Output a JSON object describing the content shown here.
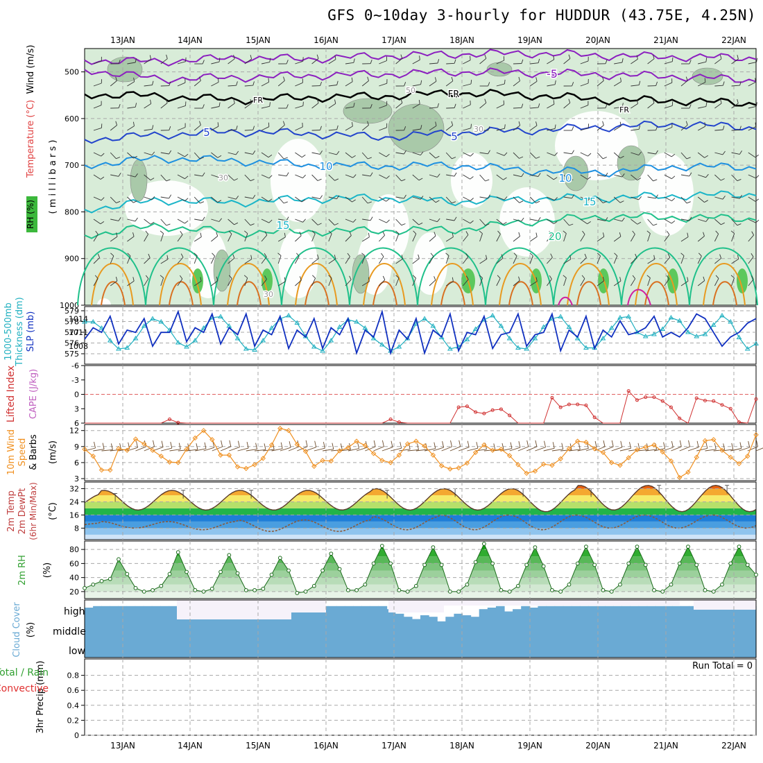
{
  "title": "GFS 0~10day 3-hourly for HUDDUR (43.75E, 4.25N)",
  "colors": {
    "grid": "#a8a8a8",
    "rh_fill": "#d8ecd8",
    "rh_mid": "#a9c9a9",
    "rh_dark": "#7f9f7f",
    "temp_purple": "#8b1fbf",
    "temp_blue": "#2244cc",
    "temp_lightblue": "#1e90e0",
    "temp_teal": "#1ab5c8",
    "temp_green": "#1fc08a",
    "temp_orange": "#e89a20",
    "slp": "#1030c0",
    "thickness": "#20b0c0",
    "lifted": "#d03030",
    "cape": "#c060c0",
    "wind_speed": "#f09020",
    "barb": "#6b4a2a",
    "rh2m": "#30a030",
    "cloud": "#6aaad4",
    "dewpt": "#8a5a3a"
  },
  "chart_data": [
    {
      "id": "upper_air",
      "type": "contour",
      "ylabel_parts": [
        "RH (%)",
        "Temperature (°C)",
        "Wind (m/s)"
      ],
      "ylabel2": "( m i l l i b a r s )",
      "y_ticks": [
        500,
        600,
        700,
        800,
        900,
        1000
      ],
      "ylim": [
        450,
        1000
      ],
      "isotherms": [
        {
          "label": "-5",
          "color": "purple",
          "levels": [
            475,
            478,
            470,
            472,
            466,
            462,
            460,
            465,
            468,
            470
          ]
        },
        {
          "label": "-5b",
          "color": "purple",
          "levels": [
            495,
            515,
            512,
            508,
            505,
            500,
            502,
            506,
            510,
            518
          ]
        },
        {
          "label": "FR",
          "color": "black",
          "levels": [
            548,
            552,
            560,
            555,
            552,
            545,
            550,
            560,
            562,
            568
          ]
        },
        {
          "label": "5",
          "color": "blue",
          "levels": [
            645,
            635,
            628,
            632,
            640,
            630,
            625,
            618,
            612,
            620
          ]
        },
        {
          "label": "10",
          "color": "lightblue",
          "levels": [
            700,
            685,
            690,
            700,
            702,
            700,
            712,
            715,
            702,
            705
          ]
        },
        {
          "label": "15",
          "color": "teal",
          "levels": [
            795,
            775,
            780,
            772,
            770,
            778,
            772,
            770,
            765,
            762
          ]
        },
        {
          "label": "20",
          "color": "green",
          "levels": [
            850,
            830,
            845,
            842,
            840,
            838,
            820,
            810,
            812,
            815
          ]
        }
      ],
      "contour_labels": [
        "-5",
        "FR",
        "FR",
        "FR",
        "5",
        "5",
        "10",
        "10",
        "15",
        "15",
        "20",
        "30",
        "30",
        "30",
        "50"
      ]
    },
    {
      "id": "slp_thickness",
      "type": "line",
      "ylabel_left": "1000-500mb Thickness (dm)",
      "ylabel_right": "SLP (mb)",
      "left_ticks": [
        575,
        576,
        577,
        578,
        579
      ],
      "right_ticks": [
        1008,
        1011,
        1014
      ],
      "series": [
        {
          "name": "SLP (mb)",
          "ylim": [
            1005,
            1016
          ],
          "values": [
            1009.5,
            1012,
            1011,
            1014.5,
            1008.5,
            1011.5,
            1011,
            1014,
            1008,
            1011,
            1011,
            1015.5,
            1009,
            1012,
            1011,
            1015,
            1008.5,
            1012,
            1010.5,
            1015,
            1008,
            1011.5,
            1010.5,
            1014.5,
            1007.5,
            1011.5,
            1010,
            1014,
            1007.5,
            1012,
            1010.5,
            1014,
            1006.5,
            1011.5,
            1010,
            1015.5,
            1006.5,
            1011.5,
            1009.5,
            1014,
            1006.5,
            1011.5,
            1010,
            1015,
            1007,
            1011,
            1010.5,
            1014.5,
            1007.5,
            1010.5,
            1011,
            1015,
            1008,
            1010.5,
            1011,
            1015,
            1007,
            1011.5,
            1010,
            1014.5,
            1007.5,
            1011.5,
            1010,
            1013.5,
            1010.5,
            1011,
            1012,
            1014.5,
            1010,
            1011,
            1010,
            1012,
            1015,
            1014,
            1011,
            1008,
            1010,
            1011,
            1013,
            1014
          ]
        },
        {
          "name": "Thickness (dm)",
          "ylim": [
            574.6,
            579.2
          ],
          "values": [
            578.0,
            578.0,
            577.4,
            576.2,
            575.4,
            575.5,
            576.4,
            577.6,
            578.3,
            578.0,
            577.2,
            576.0,
            575.6,
            576.2,
            577.4,
            578.4,
            578.5,
            577.6,
            576.4,
            575.4,
            575.3,
            576.2,
            577.4,
            578.3,
            578.6,
            577.9,
            576.6,
            575.6,
            575.2,
            576.2,
            577.5,
            578.2,
            578.0,
            577.4,
            576.4,
            575.8,
            575.2,
            575.6,
            576.4,
            577.8,
            578.3,
            577.6,
            576.5,
            575.4,
            575.6,
            576.3,
            577.3,
            578.2,
            578.6,
            577.6,
            576.4,
            575.5,
            575.4,
            576.4,
            577.5,
            578.3,
            578.5,
            577.5,
            576.4,
            575.5,
            575.5,
            576.4,
            577.4,
            578.4,
            578.5,
            577.0,
            576.6,
            576.8,
            577.3,
            578.4,
            578.1,
            577.0,
            576.6,
            576.8,
            577.7,
            578.6,
            578.0,
            576.5,
            575.4,
            575.9
          ]
        }
      ]
    },
    {
      "id": "lifted_cape",
      "type": "line",
      "ylabel_left": "Lifted Index",
      "ylabel_right": "CAPE (J/kg)",
      "y_ticks": [
        -6,
        -3,
        0,
        3,
        6
      ],
      "ylim": [
        6,
        -6
      ],
      "series": [
        {
          "name": "Lifted Index",
          "values": [
            6.0,
            6.4,
            6.8,
            6.8,
            6.8,
            6.8,
            6.8,
            6.8,
            6.8,
            6.8,
            5.2,
            5.9,
            6.8,
            6.8,
            6.8,
            6.8,
            6.8,
            6.8,
            6.8,
            6.8,
            6.8,
            6.8,
            6.8,
            6.8,
            6.8,
            6.8,
            6.8,
            6.8,
            6.8,
            6.8,
            6.8,
            6.8,
            6.8,
            6.8,
            6.8,
            6.8,
            5.2,
            5.8,
            6.4,
            6.8,
            6.8,
            6.8,
            6.8,
            6.8,
            2.7,
            2.5,
            3.7,
            4.0,
            3.3,
            3.1,
            4.4,
            6.8,
            6.8,
            6.8,
            6.8,
            0.7,
            2.7,
            2.1,
            2.1,
            2.3,
            4.8,
            6.8,
            6.8,
            6.8,
            -0.7,
            1.2,
            0.6,
            0.6,
            1.4,
            2.7,
            5.0,
            6.8,
            0.8,
            1.3,
            1.4,
            2.2,
            3.0,
            5.8,
            6.8,
            1.0
          ]
        }
      ]
    },
    {
      "id": "wind10m",
      "type": "line",
      "ylabel": "10m Wind Speed & Barbs (m/s)",
      "y_ticks": [
        3,
        6,
        9,
        12
      ],
      "ylim": [
        3,
        13
      ],
      "series": [
        {
          "name": "10m Wind Speed",
          "values": [
            8.5,
            7.2,
            4.6,
            4.6,
            8.6,
            8.3,
            10.4,
            9.5,
            8.3,
            7.2,
            6.1,
            6.0,
            8.5,
            10.6,
            12.0,
            10.3,
            7.4,
            7.4,
            5.2,
            4.9,
            5.6,
            6.8,
            9.3,
            12.4,
            12.0,
            9.4,
            8.1,
            5.3,
            6.4,
            6.3,
            8.2,
            8.8,
            10.0,
            9.2,
            7.7,
            6.4,
            6.0,
            7.4,
            9.5,
            10.0,
            9.1,
            7.4,
            5.4,
            4.8,
            5.0,
            5.9,
            7.9,
            9.3,
            8.3,
            8.5,
            7.3,
            5.6,
            4.0,
            4.4,
            5.7,
            5.5,
            6.7,
            8.6,
            10.0,
            9.8,
            8.6,
            7.9,
            6.0,
            5.5,
            6.9,
            8.4,
            8.9,
            9.3,
            8.0,
            6.3,
            3.2,
            4.2,
            7.0,
            10.1,
            10.3,
            8.3,
            7.0,
            5.8,
            7.2,
            11.2
          ]
        }
      ]
    },
    {
      "id": "temp2m",
      "type": "area",
      "ylabel": "2m Temp / 2m DewPt (6hr Min/Max) (°C)",
      "y_ticks": [
        8,
        16,
        24,
        32
      ],
      "ylim": [
        1,
        36
      ],
      "series": [
        {
          "name": "2m Temp (°C)",
          "daily_min": [
            20,
            19,
            19,
            19,
            19,
            19,
            19,
            18,
            19,
            18,
            18
          ],
          "daily_max": [
            29,
            31,
            31,
            31,
            31,
            32,
            32,
            32,
            34,
            34,
            34
          ]
        },
        {
          "name": "2m DewPt (°C)",
          "daily_min": [
            9,
            8,
            7,
            6,
            6,
            7,
            7,
            7,
            8,
            8,
            8
          ],
          "daily_max": [
            11,
            12,
            12,
            13,
            13,
            15,
            16,
            16,
            16,
            16,
            16
          ]
        }
      ]
    },
    {
      "id": "rh2m",
      "type": "area",
      "ylabel": "2m RH (%)",
      "y_ticks": [
        20,
        40,
        60,
        80
      ],
      "ylim": [
        10,
        92
      ],
      "series": [
        {
          "name": "2m RH",
          "values": [
            25,
            30,
            35,
            38,
            66,
            45,
            25,
            20,
            22,
            28,
            45,
            76,
            48,
            22,
            20,
            24,
            48,
            72,
            46,
            22,
            22,
            24,
            44,
            68,
            50,
            18,
            20,
            28,
            50,
            74,
            52,
            22,
            22,
            30,
            60,
            85,
            60,
            22,
            20,
            28,
            58,
            83,
            58,
            20,
            20,
            30,
            62,
            88,
            60,
            22,
            20,
            28,
            58,
            83,
            56,
            22,
            20,
            30,
            60,
            84,
            58,
            22,
            20,
            30,
            60,
            84,
            58,
            22,
            20,
            30,
            60,
            84,
            58,
            22,
            20,
            30,
            60,
            84,
            58,
            44
          ]
        }
      ]
    },
    {
      "id": "cloud",
      "type": "bar",
      "ylabel": "Cloud Cover (%)",
      "y_ticks": [
        "high",
        "middle",
        "low"
      ],
      "series": [
        {
          "name": "high cloud",
          "values": [
            10,
            8,
            8,
            8,
            8,
            8,
            8,
            8,
            8,
            8,
            8,
            8,
            8,
            8,
            8,
            8,
            12,
            15,
            12,
            15,
            12,
            15,
            18,
            15,
            12,
            10,
            10,
            8,
            8,
            8,
            8,
            8,
            8,
            8,
            8,
            8,
            12,
            18,
            22,
            25,
            20,
            22,
            28,
            22,
            18,
            20,
            22,
            12,
            10,
            8,
            15,
            12,
            8,
            10,
            8,
            8,
            8,
            8,
            8,
            8,
            8,
            8,
            8,
            8,
            8,
            8,
            8,
            8,
            8,
            8,
            8,
            8,
            8,
            8,
            8,
            8,
            8,
            8,
            8,
            8
          ]
        }
      ]
    },
    {
      "id": "precip",
      "type": "bar",
      "ylabel_left": "Total / Rain Convective",
      "ylabel": "3hr Precip (mm)",
      "y_ticks": [
        0,
        0.2,
        0.4,
        0.6,
        0.8
      ],
      "ylim": [
        0,
        1
      ],
      "annotation": "Run Total = 0",
      "values": []
    }
  ],
  "x_axis": {
    "labels": [
      "13JAN",
      "14JAN",
      "15JAN",
      "16JAN",
      "17JAN",
      "18JAN",
      "19JAN",
      "20JAN",
      "21JAN",
      "22JAN"
    ]
  }
}
